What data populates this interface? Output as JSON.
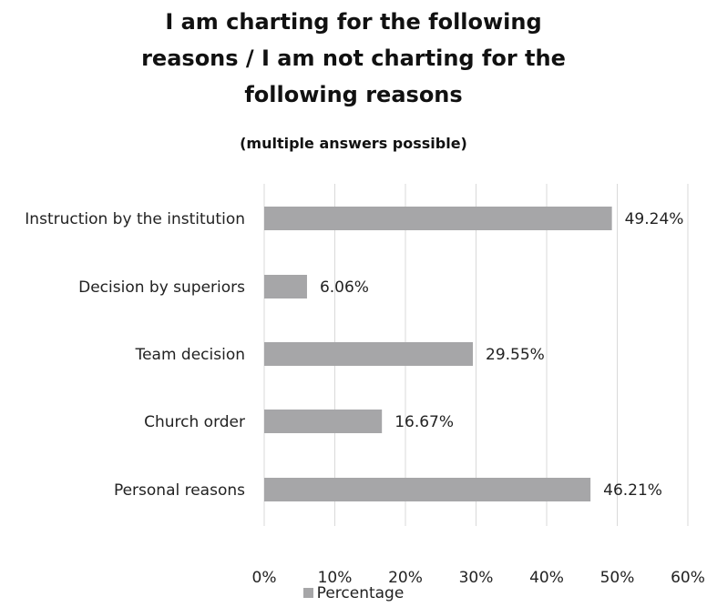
{
  "chart_data": {
    "type": "bar",
    "orientation": "horizontal",
    "title_lines": [
      "I am charting for the following",
      "reasons / I am not charting for the",
      "following reasons"
    ],
    "subtitle": "(multiple answers possible)",
    "categories": [
      "Instruction by the institution",
      "Decision by superiors",
      "Team decision",
      "Church order",
      "Personal reasons"
    ],
    "series": [
      {
        "name": "Percentage",
        "values": [
          49.24,
          6.06,
          29.55,
          16.67,
          46.21
        ],
        "labels": [
          "49.24%",
          "6.06%",
          "29.55%",
          "16.67%",
          "46.21%"
        ]
      }
    ],
    "xlim": [
      0,
      60
    ],
    "xticks": [
      "0%",
      "10%",
      "20%",
      "30%",
      "40%",
      "50%",
      "60%"
    ],
    "xlabel": "",
    "ylabel": "",
    "grid": "vertical",
    "legend_position": "bottom",
    "bar_color": "#a6a6a8",
    "grid_color": "#d9d9d9"
  }
}
